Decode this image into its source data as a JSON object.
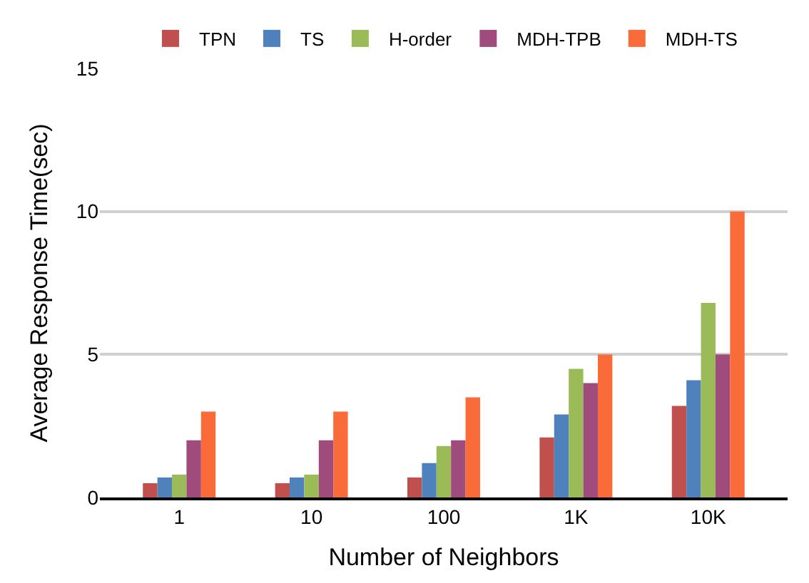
{
  "chart_data": {
    "type": "bar",
    "xlabel": "Number of Neighbors",
    "ylabel": "Average Response Time(sec)",
    "categories": [
      "1",
      "10",
      "100",
      "1K",
      "10K"
    ],
    "series": [
      {
        "name": "TPN",
        "color": "#c0504d",
        "values": [
          0.5,
          0.5,
          0.7,
          2.1,
          3.2
        ]
      },
      {
        "name": "TS",
        "color": "#4f81bd",
        "values": [
          0.7,
          0.7,
          1.2,
          2.9,
          4.1
        ]
      },
      {
        "name": "H-order",
        "color": "#9bbb59",
        "values": [
          0.8,
          0.8,
          1.8,
          4.5,
          6.8
        ]
      },
      {
        "name": "MDH-TPB",
        "color": "#9f4c7c",
        "values": [
          2.0,
          2.0,
          2.0,
          4.0,
          5.0
        ]
      },
      {
        "name": "MDH-TS",
        "color": "#f96b38",
        "values": [
          3.0,
          3.0,
          3.5,
          5.0,
          10.0
        ]
      }
    ],
    "ylim": [
      0,
      15
    ],
    "yticks": [
      0,
      5,
      10,
      15
    ],
    "grid": "y",
    "legend": "top"
  }
}
